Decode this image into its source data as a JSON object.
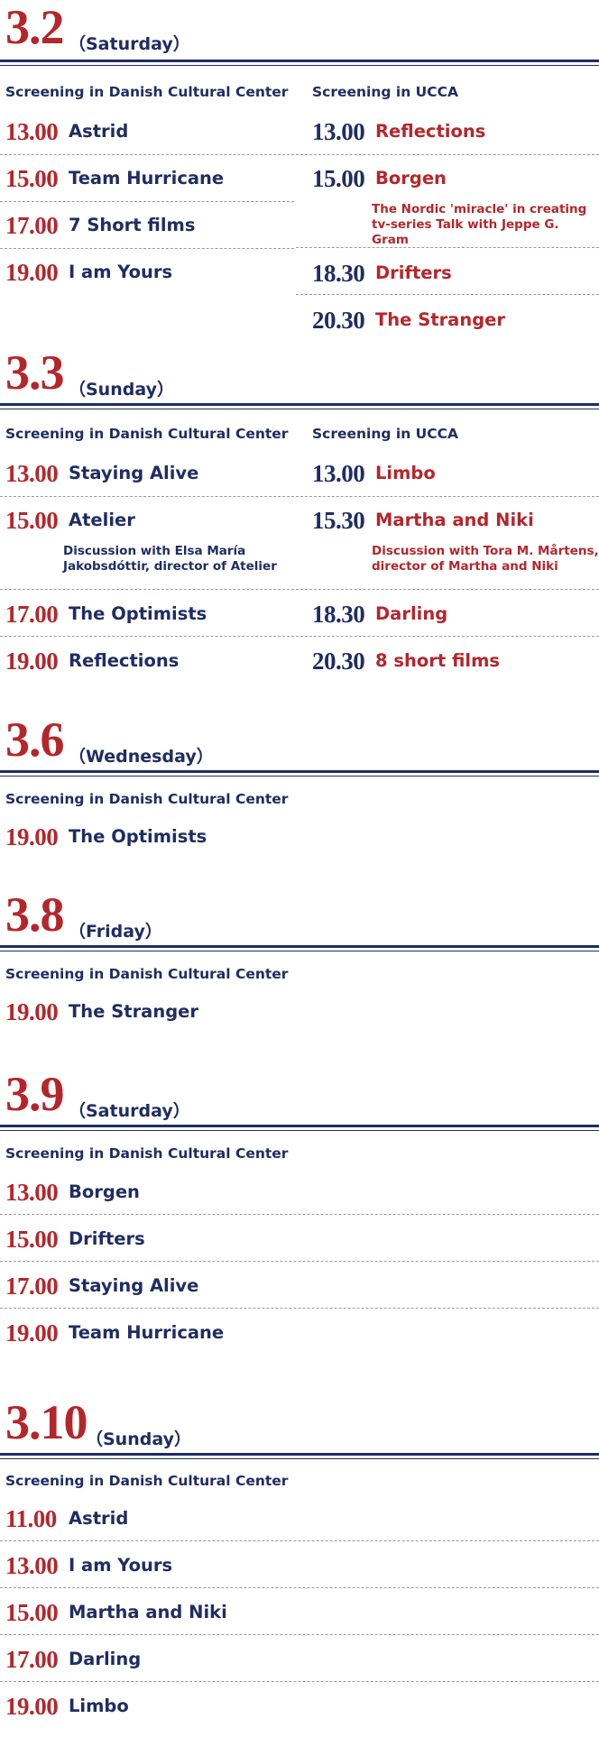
{
  "colors": {
    "red": "#b5262b",
    "blue": "#1f2d63"
  },
  "days": [
    {
      "date": "3.2",
      "weekday": "（Saturday）",
      "left": {
        "venue": "Screening in Danish Cultural Center",
        "items": [
          {
            "time": "13.00",
            "title": "Astrid"
          },
          {
            "time": "15.00",
            "title": "Team Hurricane"
          },
          {
            "time": "17.00",
            "title": "7 Short films"
          },
          {
            "time": "19.00",
            "title": " I am Yours"
          }
        ]
      },
      "right": {
        "venue": "Screening in UCCA",
        "items": [
          {
            "time": "13.00",
            "title": "Reflections"
          },
          {
            "time": "15.00",
            "title": "Borgen",
            "note": "The Nordic 'miracle' in creating tv-series Talk with Jeppe G. Gram"
          },
          {
            "time": "18.30",
            "title": "Drifters"
          },
          {
            "time": "20.30",
            "title": "The Stranger"
          }
        ]
      }
    },
    {
      "date": "3.3",
      "weekday": "（Sunday）",
      "left": {
        "venue": "Screening in Danish Cultural Center",
        "items": [
          {
            "time": "13.00",
            "title": "Staying Alive"
          },
          {
            "time": "15.00",
            "title": "Atelier",
            "note": "Discussion with Elsa María Jakobsdóttir, director of Atelier"
          },
          {
            "time": "17.00",
            "title": "The Optimists"
          },
          {
            "time": "19.00",
            "title": "Reflections"
          }
        ]
      },
      "right": {
        "venue": "Screening in UCCA",
        "items": [
          {
            "time": "13.00",
            "title": "Limbo"
          },
          {
            "time": "15.30",
            "title": "Martha and Niki",
            "note": "Discussion with Tora M. Mårtens, director of Martha and Niki"
          },
          {
            "time": "18.30",
            "title": "Darling"
          },
          {
            "time": "20.30",
            "title": "8 short films"
          }
        ]
      }
    },
    {
      "date": "3.6",
      "weekday": "（Wednesday）",
      "left": {
        "venue": "Screening in Danish Cultural Center",
        "items": [
          {
            "time": "19.00",
            "title": "The Optimists"
          }
        ]
      }
    },
    {
      "date": "3.8",
      "weekday": "（Friday）",
      "left": {
        "venue": "Screening in Danish Cultural Center",
        "items": [
          {
            "time": "19.00",
            "title": "The Stranger"
          }
        ]
      }
    },
    {
      "date": "3.9",
      "weekday": "（Saturday）",
      "left": {
        "venue": "Screening in Danish Cultural Center",
        "items": [
          {
            "time": "13.00",
            "title": "Borgen"
          },
          {
            "time": "15.00",
            "title": "Drifters"
          },
          {
            "time": "17.00",
            "title": "Staying Alive"
          },
          {
            "time": "19.00",
            "title": "Team Hurricane"
          }
        ]
      }
    },
    {
      "date": "3.10",
      "weekday": "（Sunday）",
      "left": {
        "venue": "Screening in Danish Cultural Center",
        "items": [
          {
            "time": "11.00",
            "title": "Astrid"
          },
          {
            "time": "13.00",
            "title": " I am Yours"
          },
          {
            "time": "15.00",
            "title": "Martha and Niki"
          },
          {
            "time": "17.00",
            "title": "Darling"
          },
          {
            "time": "19.00",
            "title": "Limbo"
          }
        ]
      }
    }
  ]
}
